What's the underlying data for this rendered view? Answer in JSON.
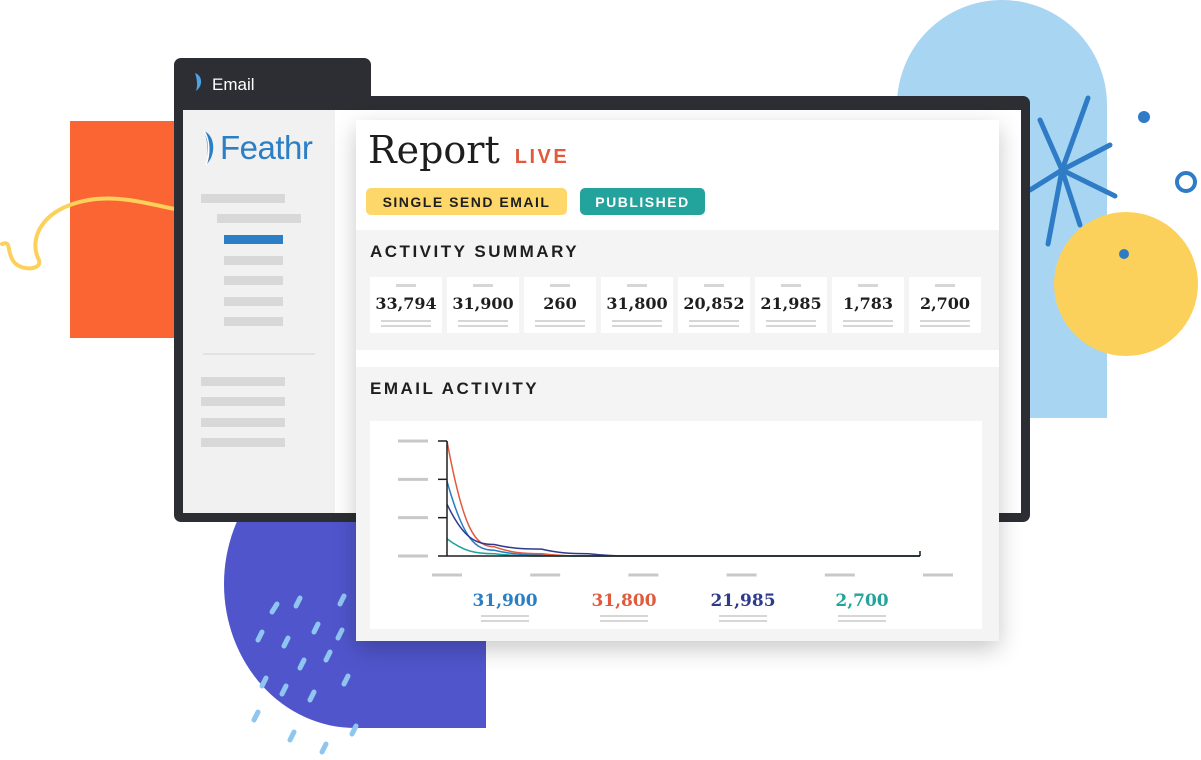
{
  "window": {
    "tab_title": "Email"
  },
  "sidebar": {
    "brand": "Feathr",
    "logo_icon": "feather-logo-icon"
  },
  "report": {
    "title": "Report",
    "live": "LIVE",
    "badges": [
      "SINGLE SEND EMAIL",
      "PUBLISHED"
    ]
  },
  "summary": {
    "title": "ACTIVITY SUMMARY",
    "stats": [
      "33,794",
      "31,900",
      "260",
      "31,800",
      "20,852",
      "21,985",
      "1,783",
      "2,700"
    ]
  },
  "activity": {
    "title": "EMAIL ACTIVITY",
    "legend": [
      {
        "value": "31,900",
        "color": "#2a7ec4"
      },
      {
        "value": "31,800",
        "color": "#e05a3e"
      },
      {
        "value": "21,985",
        "color": "#2e3b8c"
      },
      {
        "value": "2,700",
        "color": "#22a39b"
      }
    ]
  },
  "chart_data": {
    "type": "line",
    "title": "",
    "xlabel": "",
    "ylabel": "",
    "x": [
      0,
      1,
      2,
      3,
      4,
      5,
      6,
      7,
      8,
      9,
      10
    ],
    "ylim": [
      0,
      1
    ],
    "series": [
      {
        "color": "#2a7ec4",
        "values": [
          0.65,
          0.05,
          0.01,
          0.0,
          0.0,
          0.0,
          0.0,
          0.0,
          0.0,
          0.0,
          0.0
        ]
      },
      {
        "color": "#e05a3e",
        "values": [
          1.0,
          0.08,
          0.02,
          0.0,
          0.0,
          0.0,
          0.0,
          0.0,
          0.0,
          0.0,
          0.0
        ]
      },
      {
        "color": "#2e3b8c",
        "values": [
          0.45,
          0.1,
          0.06,
          0.02,
          0.0,
          0.0,
          0.0,
          0.0,
          0.0,
          0.0,
          0.0
        ]
      },
      {
        "color": "#22a39b",
        "values": [
          0.15,
          0.02,
          0.0,
          0.0,
          0.0,
          0.0,
          0.0,
          0.0,
          0.0,
          0.0,
          0.0
        ]
      }
    ],
    "grid": false,
    "legend": "bottom"
  },
  "colors": {
    "orange": "#fb6534",
    "light_blue": "#a8d5f2",
    "yellow": "#fcd15b",
    "purple": "#5055cc",
    "brand_blue": "#2c7fc4",
    "live_red": "#e05a3e",
    "badge_yellow": "#fdd76a",
    "badge_teal": "#22a39b"
  }
}
